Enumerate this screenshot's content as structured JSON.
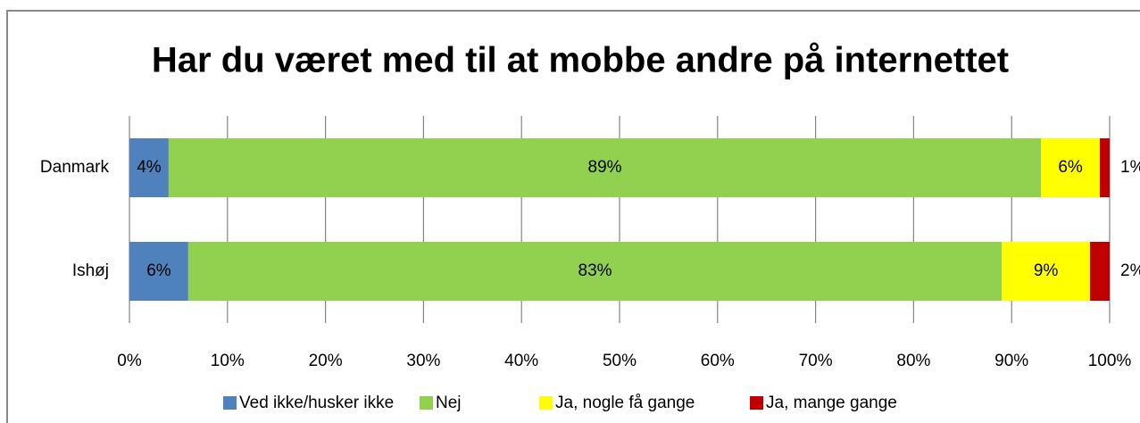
{
  "chart_data": {
    "type": "stacked-bar-horizontal",
    "title": "Har du været med til at mobbe andre på internettet",
    "categories": [
      "Danmark",
      "Ishøj"
    ],
    "series": [
      {
        "name": "Ved ikke/husker ikke",
        "color": "#4f81bd",
        "values": [
          4,
          6
        ],
        "value_labels": [
          "4%",
          "6%"
        ]
      },
      {
        "name": "Nej",
        "color": "#92d050",
        "values": [
          89,
          83
        ],
        "value_labels": [
          "89%",
          "83%"
        ]
      },
      {
        "name": "Ja, nogle få gange",
        "color": "#ffff00",
        "values": [
          6,
          9
        ],
        "value_labels": [
          "6%",
          "9%"
        ]
      },
      {
        "name": "Ja, mange gange",
        "color": "#c00000",
        "values": [
          1,
          2
        ],
        "value_labels": [
          "1%",
          "2%"
        ]
      }
    ],
    "xlim": [
      0,
      100
    ],
    "xticks": [
      {
        "value": 0,
        "label": "0%"
      },
      {
        "value": 10,
        "label": "10%"
      },
      {
        "value": 20,
        "label": "20%"
      },
      {
        "value": 30,
        "label": "30%"
      },
      {
        "value": 40,
        "label": "40%"
      },
      {
        "value": 50,
        "label": "50%"
      },
      {
        "value": 60,
        "label": "60%"
      },
      {
        "value": 70,
        "label": "70%"
      },
      {
        "value": 80,
        "label": "80%"
      },
      {
        "value": 90,
        "label": "90%"
      },
      {
        "value": 100,
        "label": "100%"
      }
    ],
    "grid": true,
    "legend": "bottom"
  }
}
